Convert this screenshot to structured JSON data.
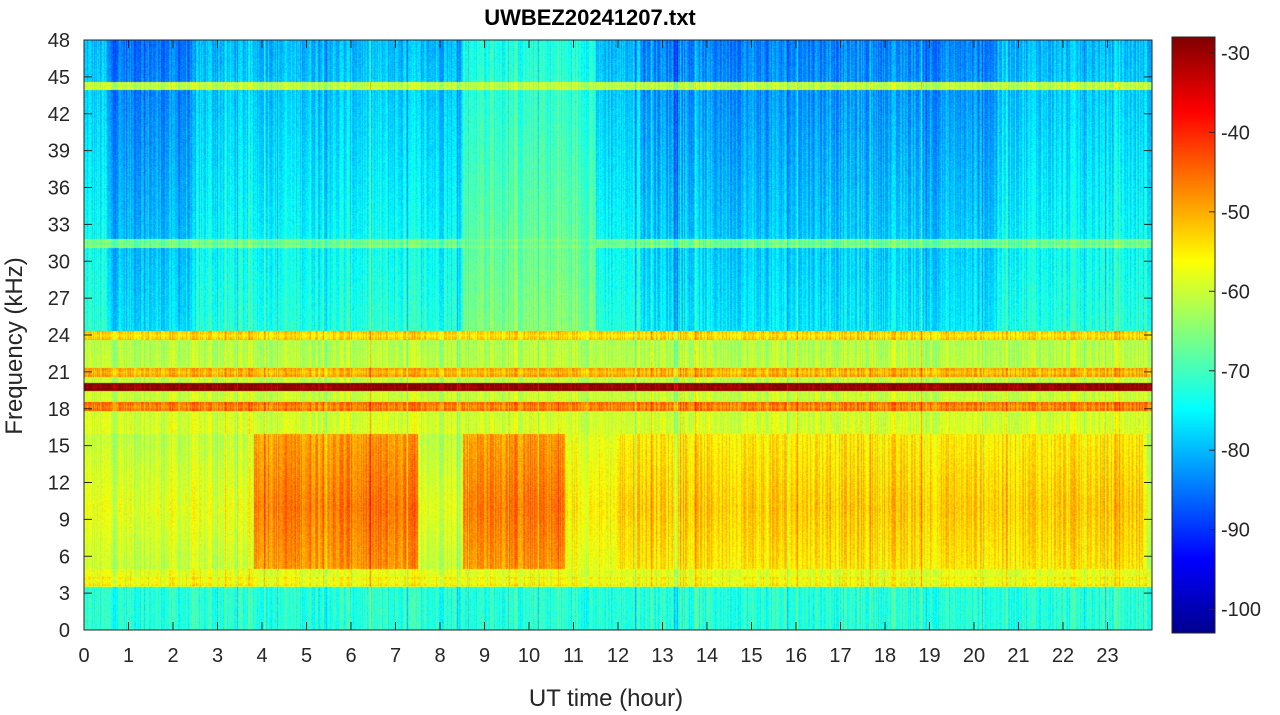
{
  "chart_data": {
    "type": "heatmap",
    "title": "UWBEZ20241207.txt",
    "xlabel": "UT time (hour)",
    "ylabel": "Frequency (kHz)",
    "xlim": [
      0,
      24
    ],
    "ylim": [
      0,
      48
    ],
    "x_ticks": [
      0,
      1,
      2,
      3,
      4,
      5,
      6,
      7,
      8,
      9,
      10,
      11,
      12,
      13,
      14,
      15,
      16,
      17,
      18,
      19,
      20,
      21,
      22,
      23
    ],
    "y_ticks": [
      0,
      3,
      6,
      9,
      12,
      15,
      18,
      21,
      24,
      27,
      30,
      33,
      36,
      39,
      42,
      45,
      48
    ],
    "colormap": "jet",
    "colorbar": {
      "range": [
        -103,
        -28
      ],
      "ticks": [
        -30,
        -40,
        -50,
        -60,
        -70,
        -80,
        -90,
        -100
      ],
      "position": "right"
    },
    "grid": false,
    "series_description": {
      "steady_lines_kHz": [
        {
          "freq": 19.8,
          "level": -30
        },
        {
          "freq": 18.2,
          "level": -48
        },
        {
          "freq": 24.0,
          "level": -55
        },
        {
          "freq": 21.0,
          "level": -52
        },
        {
          "freq": 44.3,
          "level": -62
        },
        {
          "freq": 31.5,
          "level": -68
        },
        {
          "freq": 4.0,
          "level": -58
        }
      ],
      "broadband_band_kHz": [
        5,
        16
      ],
      "broadband_peak_hours": [
        [
          3.8,
          7.5
        ],
        [
          8.5,
          10.8
        ]
      ],
      "broadband_peak_level": -44,
      "background_high_freq_level": -78
    }
  }
}
